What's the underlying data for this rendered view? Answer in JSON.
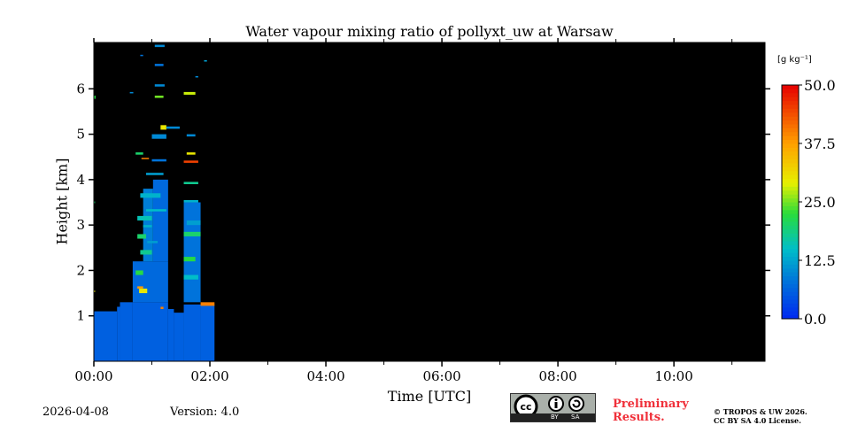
{
  "chart_data": {
    "type": "heatmap",
    "title": "Water vapour mixing ratio of pollyxt_uw at Warsaw",
    "xlabel": "Time [UTC]",
    "ylabel": "Height [km]",
    "xlim_hours": [
      0,
      11.57
    ],
    "ylim_km": [
      0,
      7.02
    ],
    "x_ticks": [
      {
        "v": 0,
        "label": "00:00"
      },
      {
        "v": 2,
        "label": "02:00"
      },
      {
        "v": 4,
        "label": "04:00"
      },
      {
        "v": 6,
        "label": "06:00"
      },
      {
        "v": 8,
        "label": "08:00"
      },
      {
        "v": 10,
        "label": "10:00"
      }
    ],
    "x_minor_ticks": [
      1,
      3,
      5,
      7,
      9,
      11
    ],
    "y_ticks": [
      {
        "v": 1,
        "label": "1"
      },
      {
        "v": 2,
        "label": "2"
      },
      {
        "v": 3,
        "label": "3"
      },
      {
        "v": 4,
        "label": "4"
      },
      {
        "v": 5,
        "label": "5"
      },
      {
        "v": 6,
        "label": "6"
      }
    ],
    "background": "#000000",
    "colorbar": {
      "unit": "[g kg⁻¹]",
      "range": [
        0,
        50
      ],
      "ticks": [
        {
          "v": 0,
          "label": "0.0"
        },
        {
          "v": 12.5,
          "label": "12.5"
        },
        {
          "v": 25,
          "label": "25.0"
        },
        {
          "v": 37.5,
          "label": "37.5"
        },
        {
          "v": 50,
          "label": "50.0"
        }
      ]
    },
    "cells_t0_t1_h0_h1_value": [
      [
        0,
        0.4,
        0,
        1.1,
        6
      ],
      [
        0.4,
        0.45,
        0,
        1.2,
        6
      ],
      [
        0.45,
        0.67,
        0,
        1.3,
        6
      ],
      [
        0.67,
        1.28,
        0,
        1.3,
        6
      ],
      [
        1.28,
        1.38,
        0,
        1.15,
        6
      ],
      [
        1.38,
        1.55,
        0,
        1.07,
        6
      ],
      [
        1.55,
        1.84,
        0,
        1.25,
        6
      ],
      [
        1.84,
        2.08,
        0,
        1.25,
        6
      ],
      [
        0.67,
        1.28,
        1.3,
        2.2,
        7
      ],
      [
        1.02,
        1.28,
        2.2,
        4.0,
        7
      ],
      [
        0.85,
        1.02,
        2.2,
        3.8,
        9
      ],
      [
        1.55,
        1.84,
        1.3,
        3.5,
        8
      ],
      [
        0.75,
        0.9,
        2.7,
        2.8,
        20
      ],
      [
        0.78,
        0.92,
        1.5,
        1.6,
        30
      ],
      [
        0.72,
        0.85,
        1.9,
        2.0,
        22
      ],
      [
        0.8,
        1.0,
        2.35,
        2.45,
        18
      ],
      [
        0.75,
        1.0,
        3.1,
        3.2,
        16
      ],
      [
        0.8,
        1.15,
        3.6,
        3.7,
        14
      ],
      [
        0.9,
        1.2,
        4.1,
        4.15,
        12
      ],
      [
        0.72,
        0.85,
        4.55,
        4.6,
        20
      ],
      [
        0.82,
        0.95,
        4.45,
        4.48,
        40
      ],
      [
        1.0,
        1.25,
        4.9,
        5.0,
        10
      ],
      [
        1.15,
        1.25,
        5.1,
        5.2,
        30
      ],
      [
        1.05,
        1.2,
        5.8,
        5.85,
        25
      ],
      [
        1.05,
        1.22,
        6.05,
        6.1,
        10
      ],
      [
        1.05,
        1.2,
        6.5,
        6.55,
        8
      ],
      [
        1.05,
        1.22,
        6.92,
        6.97,
        10
      ],
      [
        1.25,
        1.48,
        5.12,
        5.17,
        10
      ],
      [
        1.55,
        1.84,
        2.75,
        2.85,
        20
      ],
      [
        1.55,
        1.75,
        2.2,
        2.3,
        22
      ],
      [
        1.55,
        1.8,
        1.8,
        1.9,
        15
      ],
      [
        1.6,
        1.75,
        4.55,
        4.6,
        30
      ],
      [
        1.55,
        1.8,
        4.37,
        4.42,
        45
      ],
      [
        1.55,
        1.8,
        3.9,
        3.95,
        18
      ],
      [
        1.55,
        1.75,
        5.87,
        5.93,
        28
      ],
      [
        1.6,
        1.75,
        4.95,
        5.0,
        10
      ],
      [
        1.6,
        1.84,
        3.0,
        3.1,
        12
      ],
      [
        1.55,
        1.8,
        3.5,
        3.55,
        14
      ],
      [
        1.84,
        2.08,
        1.22,
        1.3,
        40
      ],
      [
        0.75,
        0.85,
        1.6,
        1.65,
        38
      ],
      [
        0,
        0.03,
        5.78,
        5.85,
        22
      ],
      [
        0,
        0.02,
        1.52,
        1.56,
        30
      ],
      [
        0,
        0.02,
        3.48,
        3.52,
        20
      ],
      [
        1.15,
        1.2,
        1.15,
        1.2,
        40
      ],
      [
        0.62,
        0.68,
        5.9,
        5.93,
        10
      ],
      [
        0.8,
        0.85,
        6.72,
        6.75,
        8
      ],
      [
        1.9,
        1.95,
        6.6,
        6.63,
        12
      ],
      [
        1.75,
        1.8,
        6.25,
        6.28,
        10
      ],
      [
        0.9,
        1.25,
        3.3,
        3.35,
        15
      ],
      [
        0.92,
        1.1,
        2.6,
        2.65,
        12
      ],
      [
        1.0,
        1.25,
        4.4,
        4.45,
        8
      ],
      [
        0.85,
        1.0,
        2.95,
        3.0,
        14
      ]
    ]
  },
  "footer": {
    "date": "2026-04-08",
    "version": "Version: 4.0",
    "license_badge": {
      "by": "BY",
      "sa": "SA",
      "cc": "cc"
    },
    "preliminary": [
      "Preliminary",
      "Results."
    ],
    "copyright": [
      "© TROPOS & UW 2026.",
      "CC BY SA 4.0 License."
    ]
  }
}
